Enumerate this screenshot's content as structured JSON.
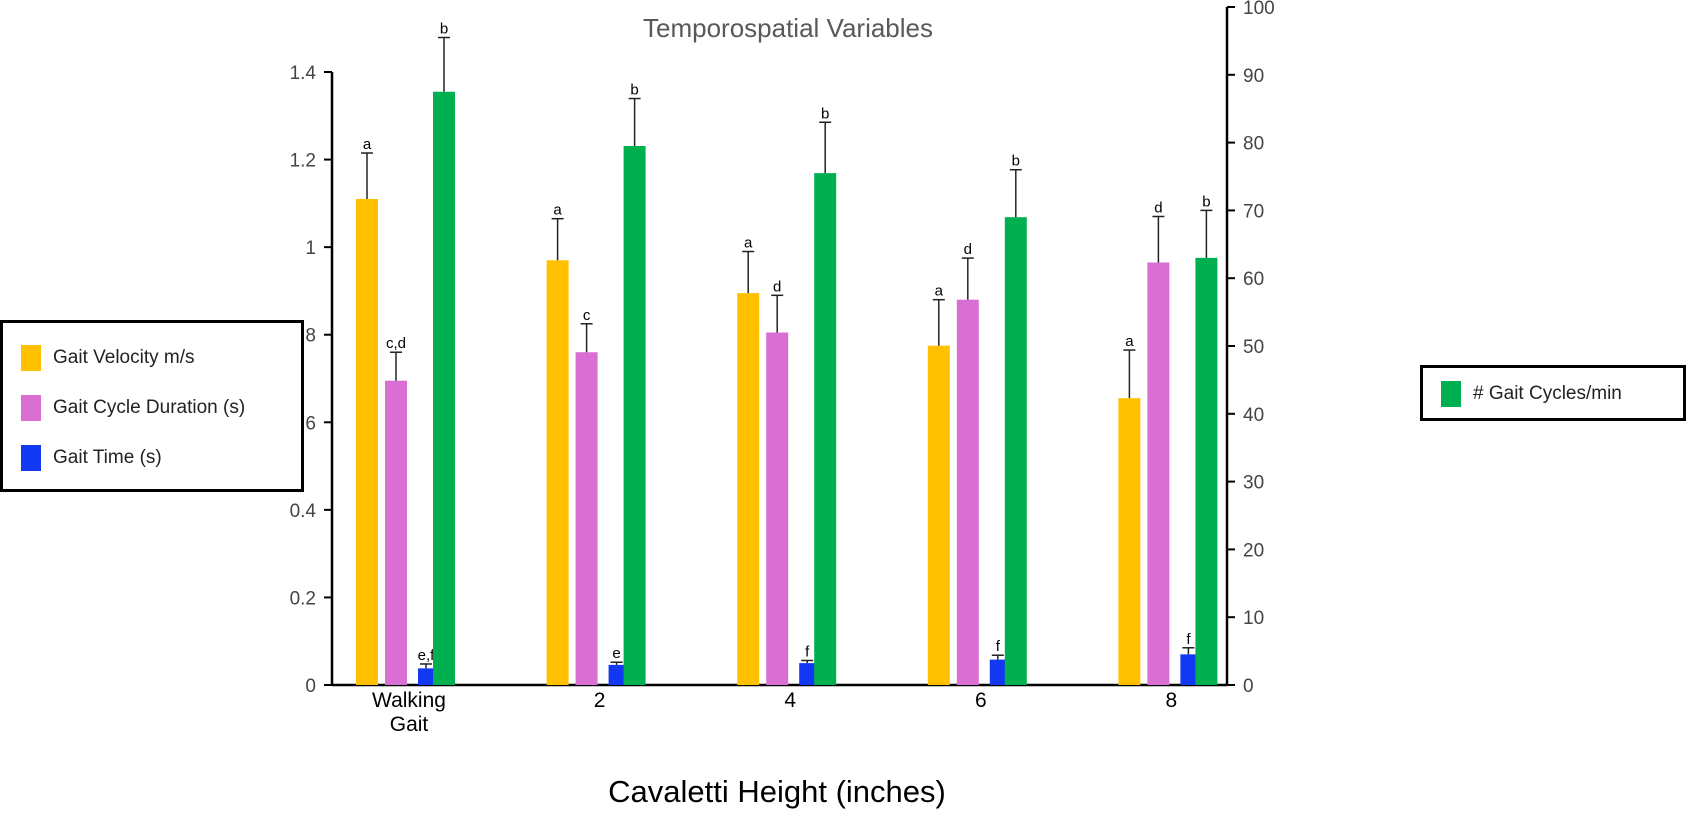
{
  "chart_data": {
    "type": "bar",
    "title": "Temporospatial Variables",
    "xlabel": "Cavaletti Height (inches)",
    "ylabel": "",
    "categories": [
      "Walking Gait",
      "2",
      "4",
      "6",
      "8"
    ],
    "category_lines": [
      [
        "Walking",
        "Gait"
      ],
      [
        "2"
      ],
      [
        "4"
      ],
      [
        "6"
      ],
      [
        "8"
      ]
    ],
    "ylim_left": [
      0,
      1.4
    ],
    "yticks_left": [
      "0",
      "0.2",
      "0.4",
      "0.6",
      "0.8",
      "1",
      "1.2",
      "1.4"
    ],
    "ylim_right": [
      0,
      100
    ],
    "yticks_right": [
      "0",
      "10",
      "20",
      "30",
      "40",
      "50",
      "60",
      "70",
      "80",
      "90",
      "100"
    ],
    "series": [
      {
        "name": "Gait Velocity m/s",
        "axis": "left",
        "color": "#FFC000",
        "values": [
          1.11,
          0.97,
          0.895,
          0.775,
          0.655
        ],
        "errors": [
          0.105,
          0.095,
          0.095,
          0.105,
          0.11
        ],
        "letters": [
          "a",
          "a",
          "a",
          "a",
          "a"
        ]
      },
      {
        "name": "Gait Cycle Duration (s)",
        "axis": "left",
        "color": "#D96FD3",
        "values": [
          0.695,
          0.76,
          0.805,
          0.88,
          0.965
        ],
        "errors": [
          0.065,
          0.065,
          0.085,
          0.095,
          0.105
        ],
        "letters": [
          "c,d",
          "c",
          "d",
          "d",
          "d"
        ]
      },
      {
        "name": "Gait Time (s)",
        "axis": "left",
        "color": "#1338F2",
        "values": [
          0.038,
          0.046,
          0.05,
          0.058,
          0.07
        ],
        "errors": [
          0.01,
          0.006,
          0.006,
          0.01,
          0.015
        ],
        "letters": [
          "e,f",
          "e",
          "f",
          "f",
          "f"
        ]
      },
      {
        "name": "# Gait Cycles/min",
        "axis": "right",
        "color": "#00B050",
        "values": [
          87.5,
          79.5,
          75.5,
          69,
          63
        ],
        "errors": [
          8,
          7,
          7.5,
          7,
          7
        ],
        "letters": [
          "b",
          "b",
          "b",
          "b",
          "b"
        ]
      }
    ],
    "legend_left": [
      "Gait Velocity m/s",
      "Gait Cycle Duration (s)",
      "Gait Time (s)"
    ],
    "legend_right": [
      "# Gait Cycles/min"
    ]
  }
}
